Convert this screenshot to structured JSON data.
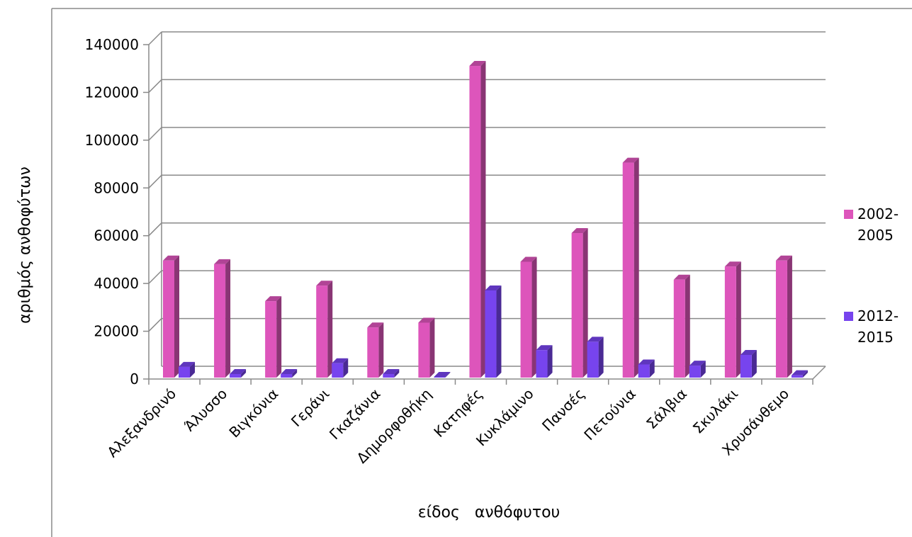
{
  "chart_data": {
    "type": "bar",
    "title": "",
    "xlabel": "είδος   ανθόφυτου",
    "ylabel": "αριθμός  ανθοφύτων",
    "ylim": [
      0,
      140000
    ],
    "yticks": [
      "0",
      "20000",
      "40000",
      "60000",
      "80000",
      "100000",
      "120000",
      "140000"
    ],
    "grid": true,
    "legend_position": "right",
    "style": "3d-clustered-column",
    "categories": [
      "Αλεξανδρινό",
      "Άλυσσο",
      "Βιγκόνια",
      "Γεράνι",
      "Γκαζάνια",
      "Δημορφοθήκη",
      "Κατηφές",
      "Κυκλάμινο",
      "Πανσές",
      "Πετούνια",
      "Σάλβια",
      "Σκυλάκι",
      "Χρυσάνθεμο"
    ],
    "series": [
      {
        "name": "2002-2005",
        "legend_lines": [
          "2002-",
          "2005"
        ],
        "color": "#dd55bb",
        "values": [
          49000,
          47500,
          32000,
          38500,
          21000,
          23000,
          130500,
          48500,
          60500,
          90000,
          41000,
          46500,
          49000
        ]
      },
      {
        "name": "2012-2015",
        "legend_lines": [
          "2012-",
          "2015"
        ],
        "color": "#7744ee",
        "values": [
          4500,
          1500,
          1500,
          6000,
          1500,
          300,
          36500,
          11500,
          15000,
          5500,
          5000,
          9500,
          1000
        ]
      }
    ]
  }
}
